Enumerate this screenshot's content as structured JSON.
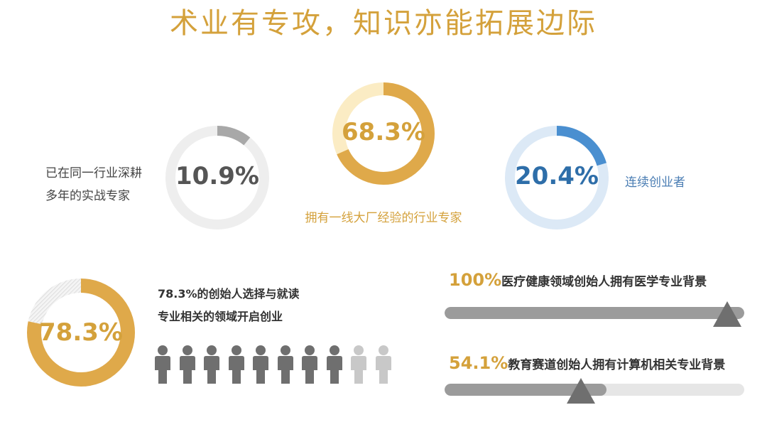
{
  "title": "术业有专攻，知识亦能拓展边际",
  "donuts": [
    {
      "value": 10.9,
      "label_pct": "10.9%",
      "text": [
        "已在同一行业深耕",
        "多年的实战专家"
      ],
      "fill": "#a8a8a8",
      "track": "#eeeeee",
      "pct_color": "#555555"
    },
    {
      "value": 68.3,
      "label_pct": "68.3%",
      "text": [
        "拥有一线大厂经验的行业专家"
      ],
      "fill": "#dfa94a",
      "track": "#fbecc4",
      "pct_color": "#d4a13b"
    },
    {
      "value": 20.4,
      "label_pct": "20.4%",
      "text": [
        "连续创业者"
      ],
      "fill": "#4a8fd0",
      "track": "#dce9f6",
      "pct_color": "#2e6ea9"
    },
    {
      "value": 78.3,
      "label_pct": "78.3%",
      "text": [
        "78.3%的创始人选择与就读",
        "专业相关的领域开启创业"
      ],
      "fill": "#dfa94a",
      "track": "#e4e4e4",
      "pct_color": "#d4a13b"
    }
  ],
  "people": {
    "total": 10,
    "highlighted": 8,
    "colors": {
      "on": "#6f6f6f",
      "off": "#c8c8c8"
    }
  },
  "bars": [
    {
      "pct": "100%",
      "text": "医疗健康领域创始人拥有医学专业背景",
      "value": 100
    },
    {
      "pct": "54.1%",
      "text": "教育赛道创始人拥有计算机相关专业背景",
      "value": 54.1
    }
  ],
  "chart_data": [
    {
      "type": "pie",
      "title": "",
      "values": [
        10.9
      ],
      "labels": [
        "已在同一行业深耕多年的实战专家"
      ]
    },
    {
      "type": "pie",
      "title": "",
      "values": [
        68.3
      ],
      "labels": [
        "拥有一线大厂经验的行业专家"
      ]
    },
    {
      "type": "pie",
      "title": "",
      "values": [
        20.4
      ],
      "labels": [
        "连续创业者"
      ]
    },
    {
      "type": "pie",
      "title": "",
      "values": [
        78.3
      ],
      "labels": [
        "78.3%的创始人选择与就读专业相关的领域开启创业"
      ]
    },
    {
      "type": "bar",
      "title": "",
      "categories": [
        "医疗健康领域创始人拥有医学专业背景",
        "教育赛道创始人拥有计算机相关专业背景"
      ],
      "values": [
        100,
        54.1
      ],
      "ylim": [
        0,
        100
      ]
    }
  ]
}
